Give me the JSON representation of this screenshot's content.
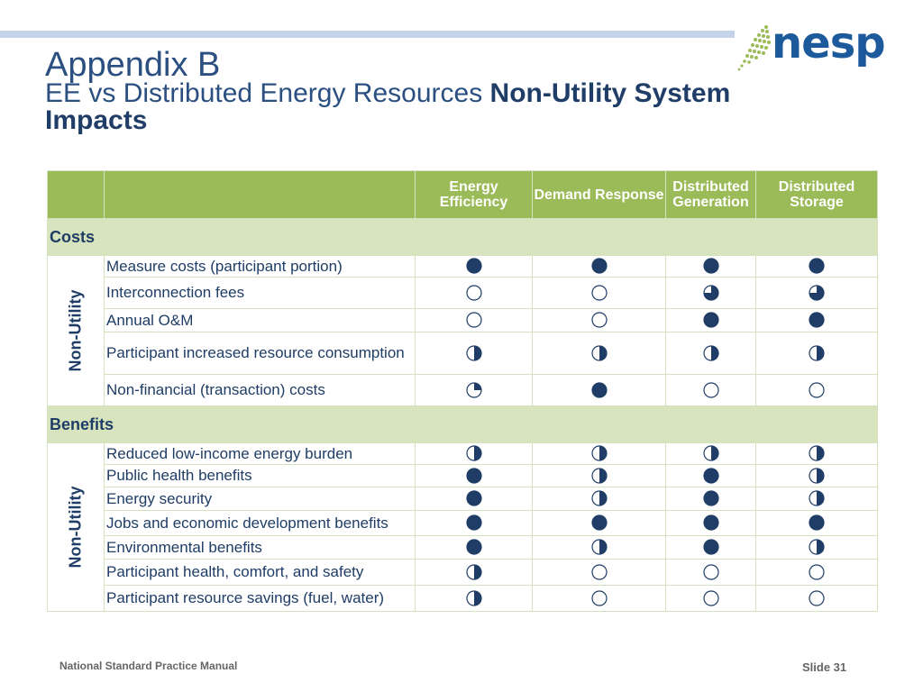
{
  "header": {
    "title": "Appendix B",
    "subtitle_plain": "EE vs Distributed Energy Resources ",
    "subtitle_bold": "Non-Utility System Impacts"
  },
  "logo": {
    "text": "nesp"
  },
  "colors": {
    "accent_green": "#9bbb59",
    "section_green": "#d7e4bd",
    "navy": "#1f3d66",
    "top_bar": "#c5d3ea"
  },
  "table": {
    "columns": [
      "Energy Efficiency",
      "Demand Response",
      "Distributed Generation",
      "Distributed Storage"
    ],
    "sections": [
      {
        "name": "Costs",
        "group_label": "Non-Utility",
        "rows": [
          {
            "label": "Measure costs (participant portion)",
            "values": [
              "full",
              "full",
              "full",
              "full"
            ]
          },
          {
            "label": "Interconnection fees",
            "values": [
              "empty",
              "empty",
              "three-quarter",
              "three-quarter"
            ]
          },
          {
            "label": "Annual O&M",
            "values": [
              "empty",
              "empty",
              "full",
              "full"
            ]
          },
          {
            "label": "Participant increased resource consumption",
            "values": [
              "half",
              "half",
              "half",
              "half"
            ]
          },
          {
            "label": "Non-financial (transaction) costs",
            "values": [
              "quarter",
              "full",
              "empty",
              "empty"
            ]
          }
        ]
      },
      {
        "name": "Benefits",
        "group_label": "Non-Utility",
        "rows": [
          {
            "label": "Reduced low-income energy burden",
            "values": [
              "half",
              "half",
              "half",
              "half"
            ]
          },
          {
            "label": "Public health benefits",
            "values": [
              "full",
              "half",
              "full",
              "half"
            ]
          },
          {
            "label": "Energy security",
            "values": [
              "full",
              "half",
              "full",
              "half"
            ]
          },
          {
            "label": "Jobs and economic development benefits",
            "values": [
              "full",
              "full",
              "full",
              "full"
            ]
          },
          {
            "label": "Environmental benefits",
            "values": [
              "full",
              "half",
              "full",
              "half"
            ]
          },
          {
            "label": "Participant health, comfort, and safety",
            "values": [
              "half",
              "empty",
              "empty",
              "empty"
            ]
          },
          {
            "label": "Participant resource savings (fuel, water)",
            "values": [
              "half",
              "empty",
              "empty",
              "empty"
            ]
          }
        ]
      }
    ]
  },
  "footer": {
    "left": "National Standard Practice Manual",
    "right": "Slide 31"
  }
}
